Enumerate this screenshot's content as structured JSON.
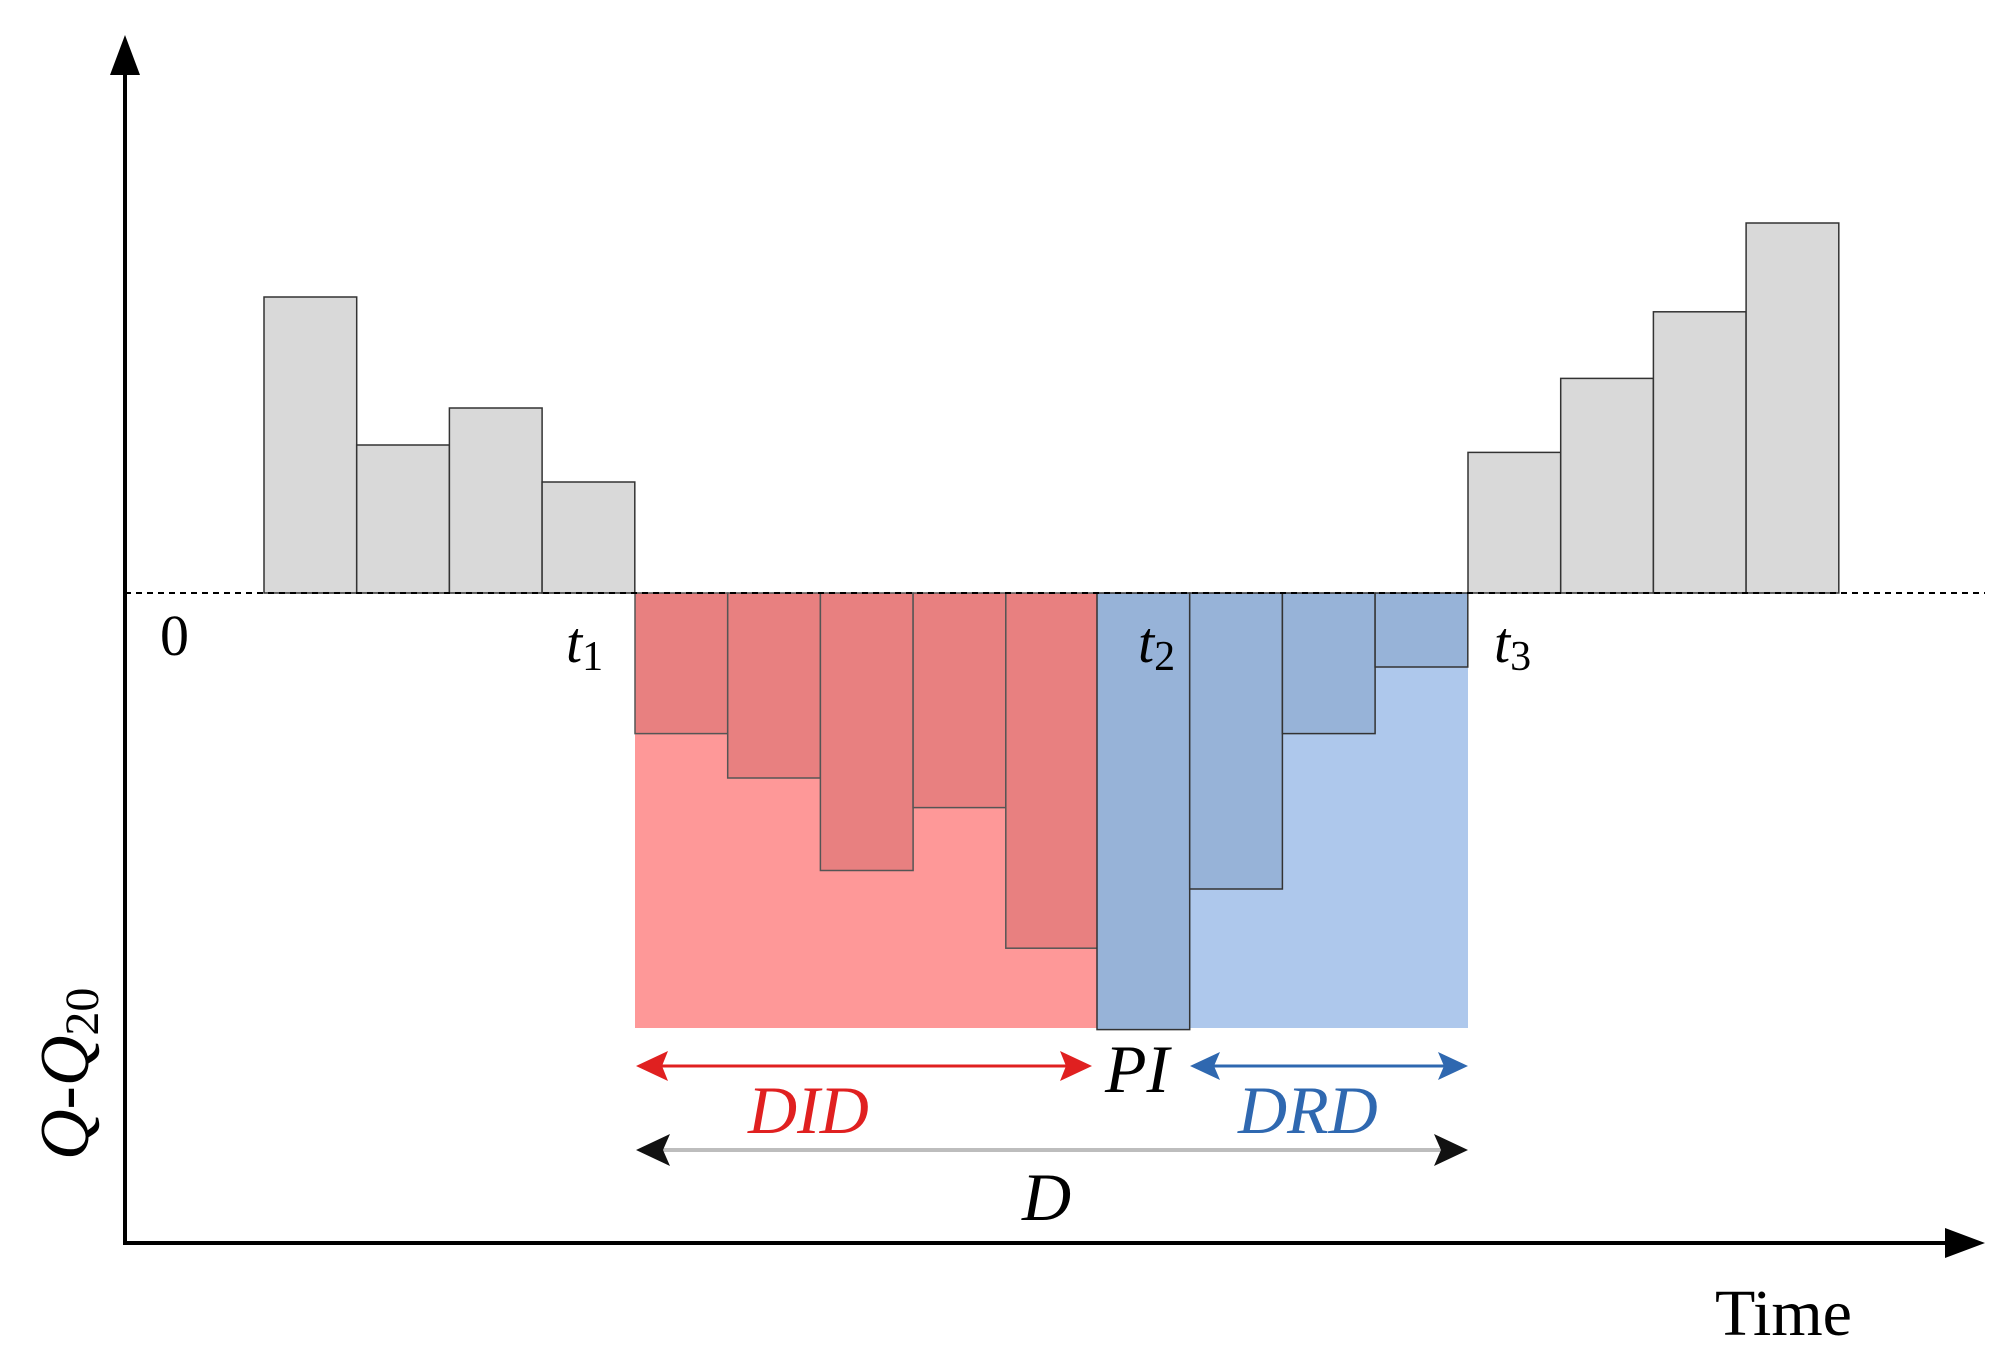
{
  "labels": {
    "origin": "0",
    "t1": "t",
    "t1_sub": "1",
    "t2": "t",
    "t2_sub": "2",
    "t3": "t",
    "t3_sub": "3",
    "pi": "PI",
    "did": "DID",
    "drd": "DRD",
    "d": "D",
    "x_axis": "Time",
    "y_axis_q1": "Q",
    "y_axis_dash": "-",
    "y_axis_q2": "Q",
    "y_axis_sub": "20"
  },
  "colors": {
    "surplus_bar": "#d9d9d9",
    "deficit_bar_did": "#e88080",
    "deficit_area_did": "#fe9898",
    "deficit_bar_drd": "#97b3d8",
    "deficit_area_drd": "#aec8ec",
    "did_arrow": "#e02020",
    "drd_arrow": "#2f68b0",
    "d_arrow": "#111111",
    "d_line": "#bdbdbd"
  },
  "chart_data": {
    "type": "bar",
    "xlabel": "Time",
    "ylabel": "Q-Q20",
    "baseline": 0,
    "markers": [
      "0",
      "t1",
      "t2",
      "t3"
    ],
    "surplus_before": [
      4.0,
      2.0,
      2.5,
      1.5
    ],
    "deficit_did": [
      -1.9,
      -2.5,
      -3.75,
      -2.9,
      -4.8
    ],
    "deficit_drd": [
      -5.9,
      -4.0,
      -1.9,
      -1.0
    ],
    "surplus_after": [
      1.9,
      2.9,
      3.8,
      5.0
    ],
    "spans": [
      {
        "name": "DID",
        "from": "t1",
        "to": "t2"
      },
      {
        "name": "DRD",
        "from": "t2",
        "to": "t3"
      },
      {
        "name": "D",
        "from": "t1",
        "to": "t3"
      }
    ]
  }
}
